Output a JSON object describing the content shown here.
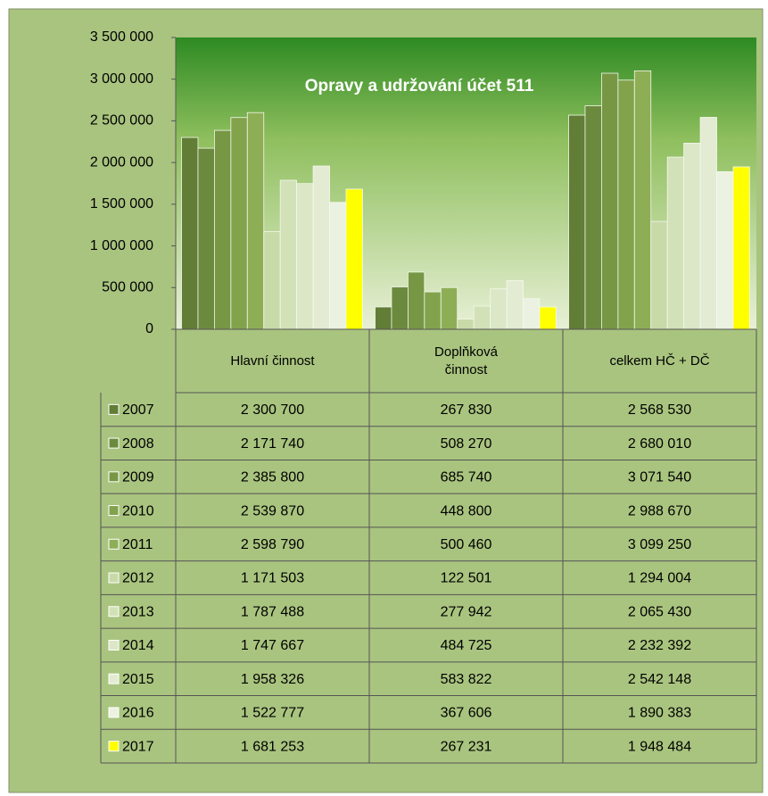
{
  "chart_data": {
    "type": "bar",
    "title": "Opravy a udržování  účet 511",
    "categories": [
      "Hlavní činnost",
      "Doplňková činnost",
      "celkem HČ + DČ"
    ],
    "series": [
      {
        "name": "2007",
        "color": "#617d36",
        "values": [
          2300700,
          267830,
          2568530
        ],
        "value_labels": [
          "2 300 700",
          "267 830",
          "2 568 530"
        ]
      },
      {
        "name": "2008",
        "color": "#6c8a3d",
        "values": [
          2171740,
          508270,
          2680010
        ],
        "value_labels": [
          "2 171 740",
          "508 270",
          "2 680 010"
        ]
      },
      {
        "name": "2009",
        "color": "#779744",
        "values": [
          2385800,
          685740,
          3071540
        ],
        "value_labels": [
          "2 385 800",
          "685 740",
          "3 071 540"
        ]
      },
      {
        "name": "2010",
        "color": "#82a34c",
        "values": [
          2539870,
          448800,
          2988670
        ],
        "value_labels": [
          "2 539 870",
          "448 800",
          "2 988 670"
        ]
      },
      {
        "name": "2011",
        "color": "#8eae56",
        "values": [
          2598790,
          500460,
          3099250
        ],
        "value_labels": [
          "2 598 790",
          "500 460",
          "3 099 250"
        ]
      },
      {
        "name": "2012",
        "color": "#c9daa9",
        "values": [
          1171503,
          122501,
          1294004
        ],
        "value_labels": [
          "1 171 503",
          "122 501",
          "1 294 004"
        ]
      },
      {
        "name": "2013",
        "color": "#d3e1b8",
        "values": [
          1787488,
          277942,
          2065430
        ],
        "value_labels": [
          "1 787 488",
          "277 942",
          "2 065 430"
        ]
      },
      {
        "name": "2014",
        "color": "#dbe7c6",
        "values": [
          1747667,
          484725,
          2232392
        ],
        "value_labels": [
          "1 747 667",
          "484 725",
          "2 232 392"
        ]
      },
      {
        "name": "2015",
        "color": "#e3ecd3",
        "values": [
          1958326,
          583822,
          2542148
        ],
        "value_labels": [
          "1 958 326",
          "583 822",
          "2 542 148"
        ]
      },
      {
        "name": "2016",
        "color": "#ecf2e2",
        "values": [
          1522777,
          367606,
          1890383
        ],
        "value_labels": [
          "1 522 777",
          "367 606",
          "1 890 383"
        ]
      },
      {
        "name": "2017",
        "color": "#ffff00",
        "values": [
          1681253,
          267231,
          1948484
        ],
        "value_labels": [
          "1 681 253",
          "267 231",
          "1 948 484"
        ]
      }
    ],
    "ylim": [
      0,
      3500000
    ],
    "yticks": [
      0,
      {
        "value": 500000,
        "label": "500 000"
      },
      {
        "value": 1000000,
        "label": "1 000 000"
      },
      {
        "value": 1500000,
        "label": "1 500 000"
      },
      {
        "value": 2000000,
        "label": "2 000 000"
      },
      {
        "value": 2500000,
        "label": "2 500 000"
      },
      {
        "value": 3000000,
        "label": "3 000 000"
      },
      {
        "value": 3500000,
        "label": "3 500 000"
      }
    ],
    "grid": false
  }
}
